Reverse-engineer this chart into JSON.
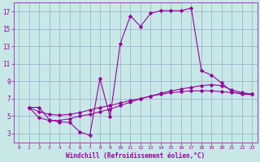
{
  "xlabel": "Windchill (Refroidissement éolien,°C)",
  "background_color": "#c8e8e8",
  "line_color": "#990099",
  "grid_color": "#99aacc",
  "xlim": [
    -0.5,
    23.5
  ],
  "ylim": [
    2,
    18
  ],
  "xticks": [
    0,
    1,
    2,
    3,
    4,
    5,
    6,
    7,
    8,
    9,
    10,
    11,
    12,
    13,
    14,
    15,
    16,
    17,
    18,
    19,
    20,
    21,
    22,
    23
  ],
  "yticks": [
    3,
    5,
    7,
    9,
    11,
    13,
    15,
    17
  ],
  "series1": [
    [
      1,
      6.0
    ],
    [
      2,
      6.0
    ],
    [
      3,
      4.6
    ],
    [
      4,
      4.3
    ],
    [
      5,
      4.3
    ],
    [
      6,
      3.2
    ],
    [
      7,
      2.8
    ],
    [
      8,
      9.3
    ],
    [
      9,
      4.9
    ],
    [
      10,
      13.3
    ],
    [
      11,
      16.5
    ],
    [
      12,
      15.3
    ],
    [
      13,
      16.8
    ],
    [
      14,
      17.1
    ],
    [
      15,
      17.1
    ],
    [
      16,
      17.1
    ],
    [
      17,
      17.4
    ],
    [
      18,
      10.2
    ],
    [
      19,
      9.7
    ],
    [
      20,
      8.8
    ],
    [
      21,
      7.8
    ],
    [
      22,
      7.5
    ],
    [
      23,
      7.5
    ]
  ],
  "series2": [
    [
      1,
      6.0
    ],
    [
      2,
      4.8
    ],
    [
      3,
      4.5
    ],
    [
      4,
      4.5
    ],
    [
      5,
      4.7
    ],
    [
      6,
      5.0
    ],
    [
      7,
      5.2
    ],
    [
      8,
      5.5
    ],
    [
      9,
      5.8
    ],
    [
      10,
      6.2
    ],
    [
      11,
      6.6
    ],
    [
      12,
      7.0
    ],
    [
      13,
      7.3
    ],
    [
      14,
      7.6
    ],
    [
      15,
      7.9
    ],
    [
      16,
      8.1
    ],
    [
      17,
      8.3
    ],
    [
      18,
      8.5
    ],
    [
      19,
      8.6
    ],
    [
      20,
      8.5
    ],
    [
      21,
      8.0
    ],
    [
      22,
      7.7
    ],
    [
      23,
      7.5
    ]
  ],
  "series3": [
    [
      1,
      6.0
    ],
    [
      2,
      5.5
    ],
    [
      3,
      5.2
    ],
    [
      4,
      5.1
    ],
    [
      5,
      5.2
    ],
    [
      6,
      5.4
    ],
    [
      7,
      5.7
    ],
    [
      8,
      6.0
    ],
    [
      9,
      6.2
    ],
    [
      10,
      6.5
    ],
    [
      11,
      6.8
    ],
    [
      12,
      7.0
    ],
    [
      13,
      7.3
    ],
    [
      14,
      7.5
    ],
    [
      15,
      7.7
    ],
    [
      16,
      7.8
    ],
    [
      17,
      7.9
    ],
    [
      18,
      7.9
    ],
    [
      19,
      7.9
    ],
    [
      20,
      7.8
    ],
    [
      21,
      7.7
    ],
    [
      22,
      7.6
    ],
    [
      23,
      7.5
    ]
  ]
}
